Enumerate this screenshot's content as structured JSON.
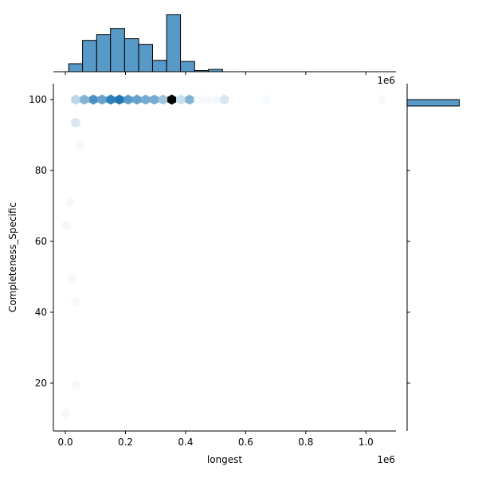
{
  "chart_data": {
    "type": "hexbin",
    "xlabel": "longest",
    "ylabel": "Completeness_Specific",
    "x_offset_label": "1e6",
    "xlim": [
      -0.04,
      1.1
    ],
    "ylim": [
      6.5,
      104.5
    ],
    "xticks": [
      {
        "value": 0,
        "label": "0.0"
      },
      0.2,
      0.4,
      0.6,
      0.8,
      {
        "value": 1,
        "label": "1.0"
      }
    ],
    "yticks": [
      20,
      40,
      60,
      80,
      100
    ],
    "colors": [
      "#f4f8fb",
      "#1f77b4",
      "#000000"
    ],
    "hexbins": {
      "x": [
        0.034,
        0.063,
        0.093,
        0.122,
        0.151,
        0.18,
        0.209,
        0.238,
        0.267,
        0.296,
        0.325,
        0.354,
        0.384,
        0.413,
        0.442,
        0.471,
        0.5,
        0.529,
        0.669,
        1.053,
        0.034,
        0.048,
        0.016,
        0.003,
        0.021,
        0.034,
        0.034,
        0.0
      ],
      "y": [
        100,
        100,
        100,
        100,
        100,
        100,
        100,
        100,
        100,
        100,
        100,
        100,
        100,
        100,
        100,
        100,
        100,
        100,
        100,
        100,
        93.5,
        87,
        71,
        64.5,
        49.5,
        43,
        19.5,
        11.5
      ],
      "counts": [
        4,
        8,
        12,
        10,
        14,
        15,
        11,
        10,
        9,
        9,
        6,
        20,
        3,
        8,
        1,
        1,
        1,
        2,
        1,
        1,
        2,
        1,
        1,
        1,
        1,
        1,
        1,
        1
      ]
    },
    "marginal_x": {
      "type": "histogram",
      "color": "#5799c7",
      "bins": [
        0.011,
        0.057,
        0.104,
        0.15,
        0.197,
        0.244,
        0.29,
        0.337,
        0.383,
        0.43,
        0.476,
        0.523
      ],
      "counts": [
        14,
        55,
        65,
        76,
        58,
        48,
        20,
        100,
        18,
        2,
        4
      ],
      "ylim": [
        0,
        105
      ]
    },
    "marginal_y": {
      "type": "histogram",
      "color": "#5799c7",
      "bins": [
        98.2,
        100.0
      ],
      "counts": [
        90
      ],
      "xlim": [
        0,
        110
      ]
    }
  }
}
